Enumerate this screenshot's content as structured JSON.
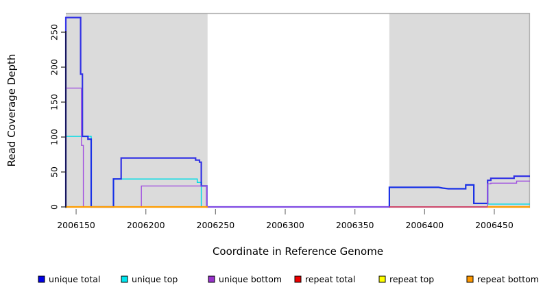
{
  "chart_data": {
    "type": "line",
    "subtype": "step-coverage",
    "title": "",
    "xlabel": "Coordinate in Reference Genome",
    "ylabel": "Read Coverage Depth",
    "xlim": [
      2006142.6,
      2006475.6
    ],
    "ylim": [
      0,
      271
    ],
    "x_ticks": [
      2006150,
      2006200,
      2006250,
      2006300,
      2006350,
      2006400,
      2006450
    ],
    "y_ticks": [
      0,
      50,
      100,
      150,
      200,
      250
    ],
    "grid": "off",
    "legend_position": "bottom",
    "background_color": "#ffffff",
    "shaded_region_color": "#dbdbdb",
    "shaded_regions": [
      {
        "name": "repeat-region-left",
        "x0": 2006142.6,
        "x1": 2006244.3
      },
      {
        "name": "repeat-region-right",
        "x0": 2006374.7,
        "x1": 2006475.6
      }
    ],
    "series": [
      {
        "name": "unique top",
        "color": "#00dce6",
        "legend_color": "#00e5ee",
        "lw": 1.5,
        "paths": [
          [
            [
              2006142.6,
              101
            ],
            [
              2006160.8,
              101
            ],
            [
              2006160.8,
              0
            ],
            [
              2006176.8,
              0
            ],
            [
              2006176.8,
              40
            ],
            [
              2006236.9,
              40
            ],
            [
              2006236.9,
              35
            ],
            [
              2006239.8,
              35
            ],
            [
              2006239.8,
              0
            ],
            [
              2006374.7,
              0
            ],
            [
              2006374.7,
              28
            ],
            [
              2006410,
              28
            ],
            [
              2006413,
              27
            ],
            [
              2006417,
              26
            ],
            [
              2006429.5,
              26
            ],
            [
              2006429.5,
              31.5
            ],
            [
              2006435.3,
              31.5
            ],
            [
              2006435.3,
              5
            ],
            [
              2006445.2,
              5
            ],
            [
              2006445.2,
              4
            ],
            [
              2006475.6,
              4
            ]
          ]
        ]
      },
      {
        "name": "unique total",
        "color": "rgba(20,20,230,0.85)",
        "legend_color": "#0000e6",
        "lw": 2.2,
        "paths": [
          [
            [
              2006142.6,
              0
            ],
            [
              2006142.6,
              271
            ],
            [
              2006153.2,
              271
            ],
            [
              2006153.2,
              190
            ],
            [
              2006154.5,
              190
            ],
            [
              2006154.5,
              101
            ],
            [
              2006158.5,
              101
            ],
            [
              2006158.5,
              97
            ],
            [
              2006160.8,
              97
            ],
            [
              2006160.8,
              0
            ],
            [
              2006176.8,
              0
            ],
            [
              2006176.8,
              40
            ],
            [
              2006182.3,
              40
            ],
            [
              2006182.3,
              70
            ],
            [
              2006235.7,
              70
            ],
            [
              2006235.7,
              67
            ],
            [
              2006238.5,
              67
            ],
            [
              2006238.5,
              64
            ],
            [
              2006239.8,
              64
            ],
            [
              2006239.8,
              30
            ],
            [
              2006243.8,
              30
            ],
            [
              2006243.8,
              0
            ],
            [
              2006374.7,
              0
            ],
            [
              2006374.7,
              28
            ],
            [
              2006410,
              28
            ],
            [
              2006413,
              27
            ],
            [
              2006417,
              26
            ],
            [
              2006429.5,
              26
            ],
            [
              2006429.5,
              31.5
            ],
            [
              2006435.3,
              31.5
            ],
            [
              2006435.3,
              5
            ],
            [
              2006445.2,
              5
            ],
            [
              2006445.2,
              38
            ],
            [
              2006447.5,
              38
            ],
            [
              2006447.5,
              41
            ],
            [
              2006464.2,
              41
            ],
            [
              2006464.2,
              44
            ],
            [
              2006475.6,
              44
            ]
          ]
        ]
      },
      {
        "name": "unique bottom",
        "color": "#a050e0",
        "legend_color": "#9932cc",
        "lw": 1.4,
        "paths": [
          [
            [
              2006142.6,
              170
            ],
            [
              2006153.8,
              170
            ],
            [
              2006153.8,
              88
            ],
            [
              2006155.2,
              88
            ],
            [
              2006155.2,
              0
            ],
            [
              2006196.8,
              0
            ],
            [
              2006196.8,
              30
            ],
            [
              2006243.8,
              30
            ],
            [
              2006243.8,
              0
            ],
            [
              2006445.2,
              0
            ],
            [
              2006445.2,
              33
            ],
            [
              2006447.5,
              33
            ],
            [
              2006447.5,
              34
            ],
            [
              2006466,
              34
            ],
            [
              2006466,
              37
            ],
            [
              2006475.6,
              37
            ]
          ]
        ]
      },
      {
        "name": "repeat total",
        "color": "rgba(224,32,32,0.8)",
        "legend_color": "#ee0000",
        "lw": 1.6,
        "paths": [
          [
            [
              2006374.7,
              0
            ],
            [
              2006445.2,
              0
            ]
          ]
        ]
      },
      {
        "name": "repeat top",
        "color": "#ffff00",
        "legend_color": "#ffff00",
        "lw": 1.6,
        "paths": [
          [
            [
              2006142.6,
              0
            ],
            [
              2006244.3,
              0
            ]
          ]
        ]
      },
      {
        "name": "repeat bottom",
        "color": "#ff9d00",
        "legend_color": "#ff9900",
        "lw": 2.2,
        "paths": [
          [
            [
              2006142.6,
              0
            ],
            [
              2006244.3,
              0
            ]
          ],
          [
            [
              2006445.2,
              0
            ],
            [
              2006475.6,
              0
            ]
          ]
        ]
      }
    ]
  },
  "legend": {
    "items": [
      {
        "label": "unique total"
      },
      {
        "label": "unique top"
      },
      {
        "label": "unique bottom"
      },
      {
        "label": "repeat total"
      },
      {
        "label": "repeat top"
      },
      {
        "label": "repeat bottom"
      }
    ]
  },
  "axes": {
    "xlabel": "Coordinate in Reference Genome",
    "ylabel": "Read Coverage Depth"
  }
}
